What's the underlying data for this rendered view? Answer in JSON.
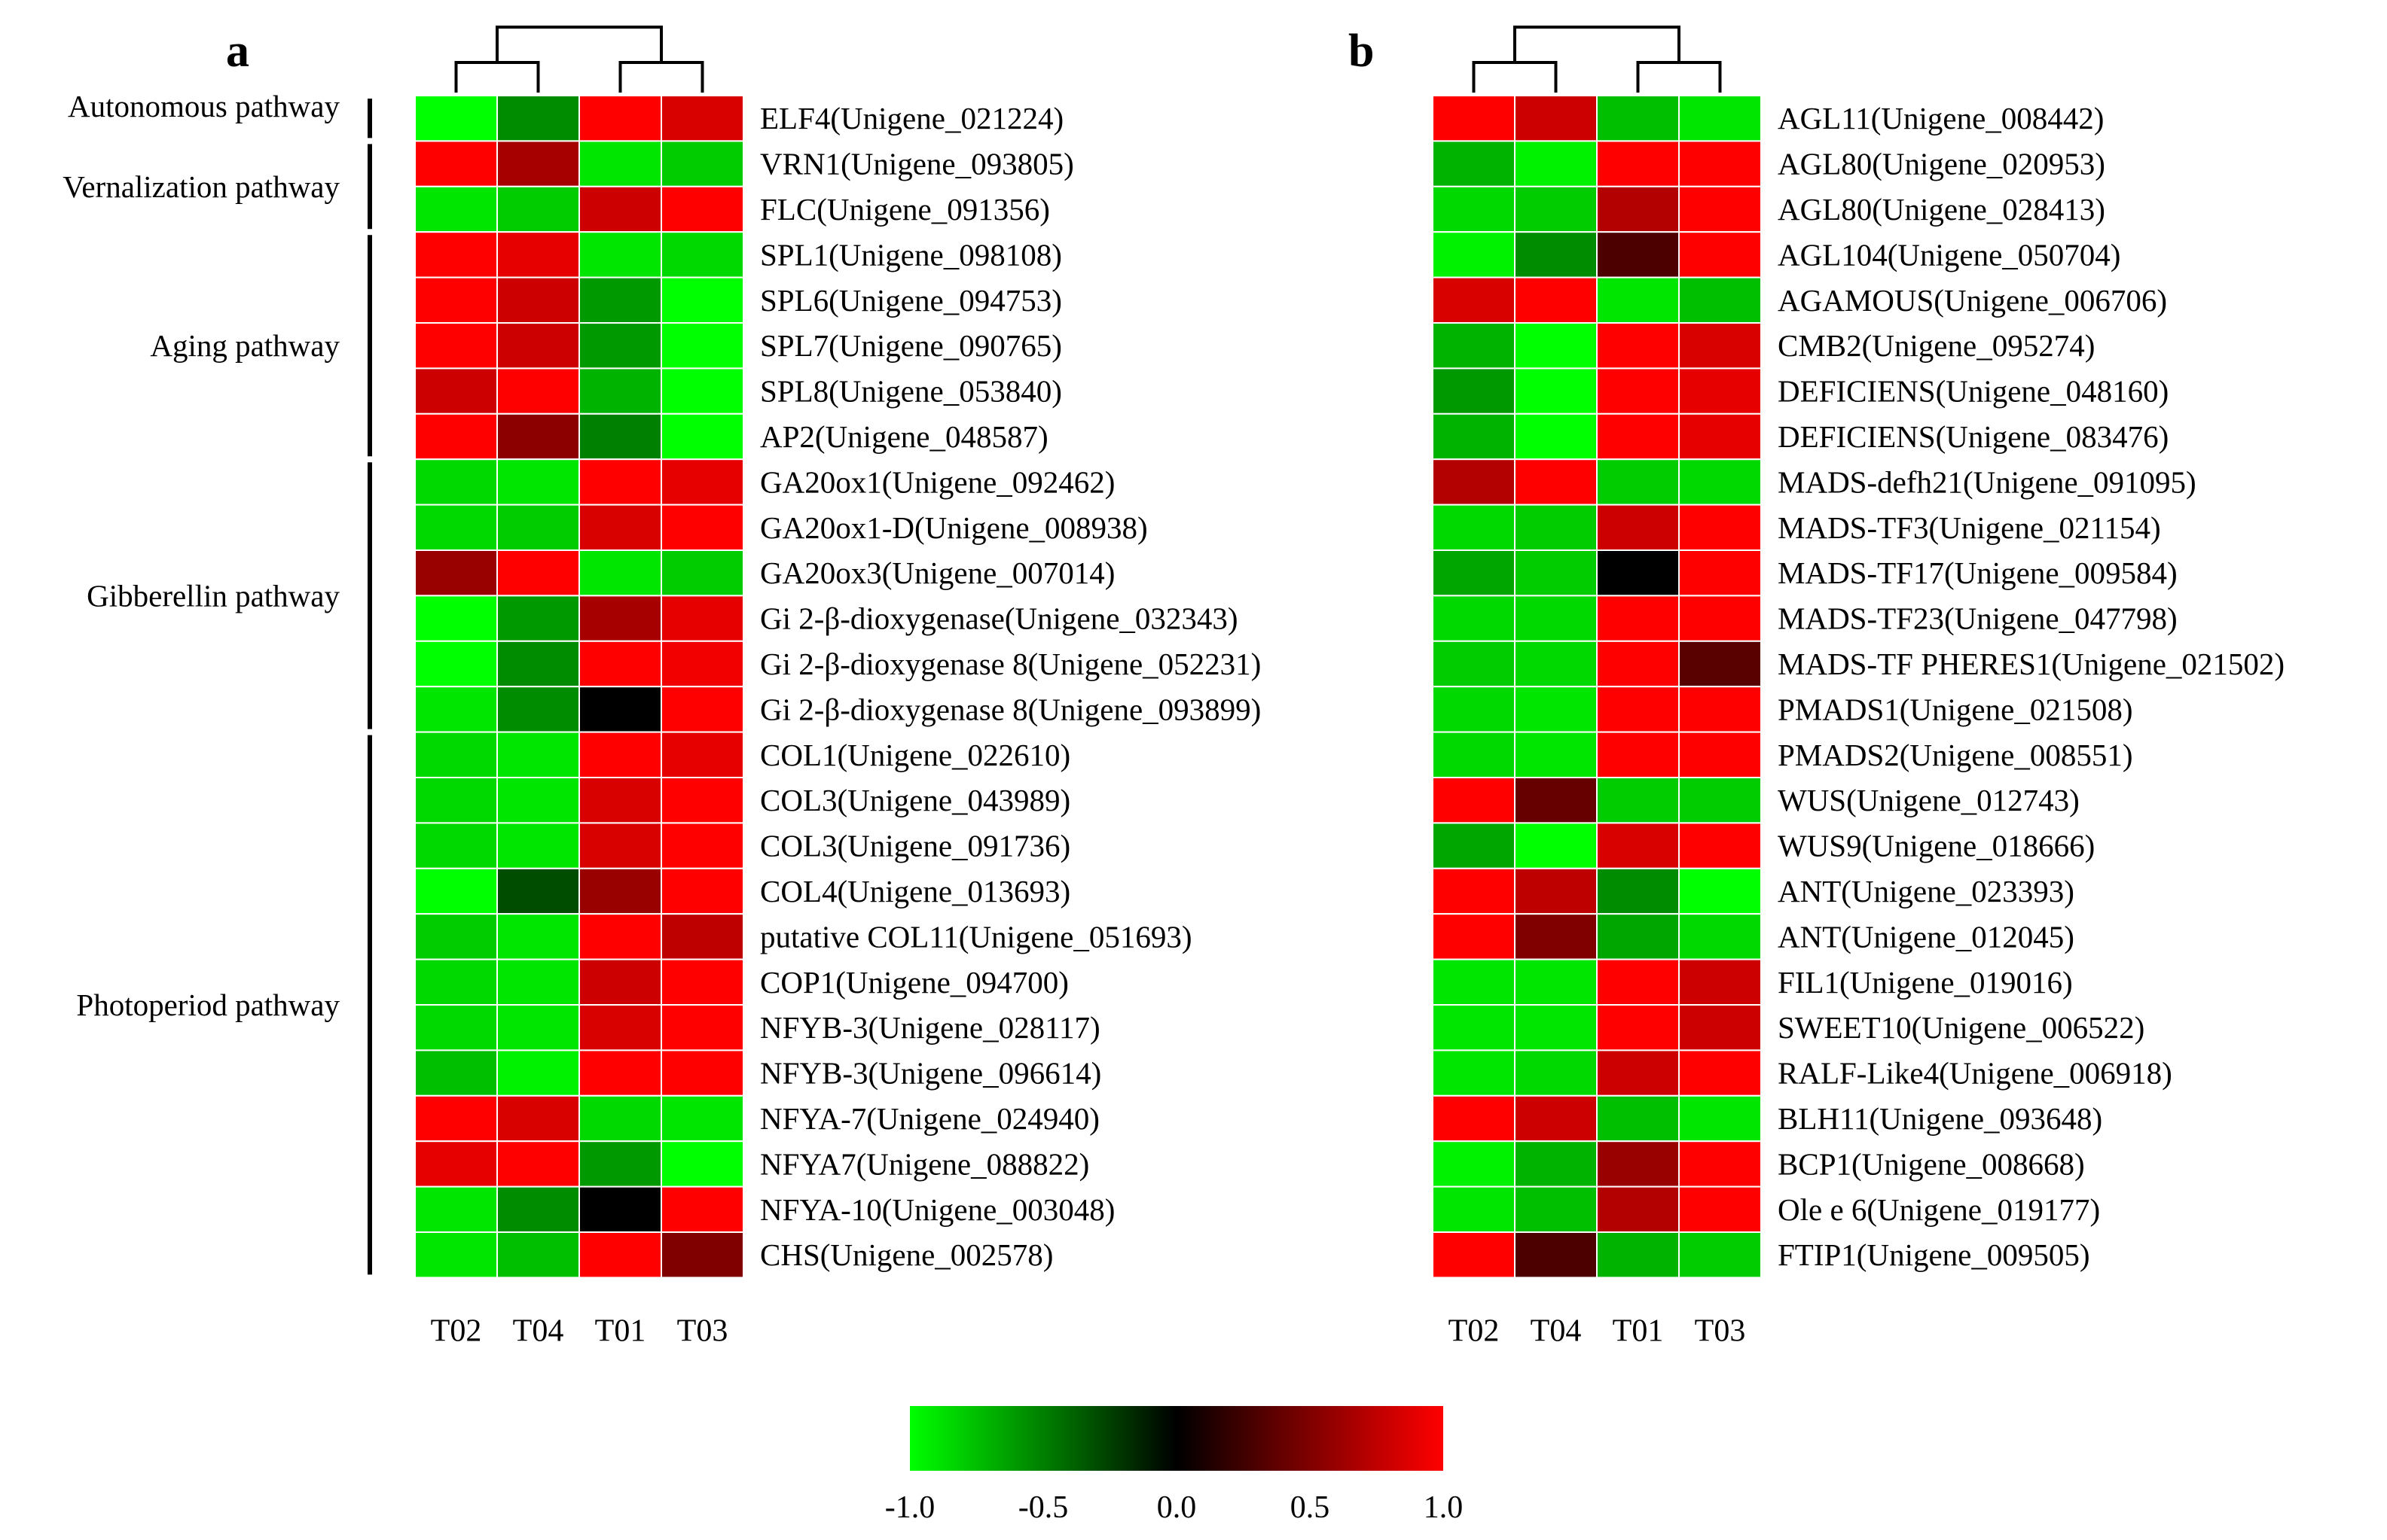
{
  "chart_data": [
    {
      "type": "heatmap",
      "panel": "a",
      "columns": [
        "T02",
        "T04",
        "T01",
        "T03"
      ],
      "rows": [
        {
          "label": "ELF4(Unigene_021224)",
          "values": [
            -1.0,
            -0.55,
            1.0,
            0.85
          ]
        },
        {
          "label": "VRN1(Unigene_093805)",
          "values": [
            1.0,
            0.65,
            -0.9,
            -0.8
          ]
        },
        {
          "label": "FLC(Unigene_091356)",
          "values": [
            -0.9,
            -0.8,
            0.8,
            1.0
          ]
        },
        {
          "label": "SPL1(Unigene_098108)",
          "values": [
            1.0,
            0.9,
            -0.9,
            -0.85
          ]
        },
        {
          "label": "SPL6(Unigene_094753)",
          "values": [
            1.0,
            0.8,
            -0.6,
            -1.0
          ]
        },
        {
          "label": "SPL7(Unigene_090765)",
          "values": [
            1.0,
            0.8,
            -0.6,
            -1.0
          ]
        },
        {
          "label": "SPL8(Unigene_053840)",
          "values": [
            0.8,
            1.0,
            -0.7,
            -1.0
          ]
        },
        {
          "label": "AP2(Unigene_048587)",
          "values": [
            1.0,
            0.55,
            -0.5,
            -1.0
          ]
        },
        {
          "label": "GA20ox1(Unigene_092462)",
          "values": [
            -0.85,
            -0.9,
            1.0,
            0.9
          ]
        },
        {
          "label": "GA20ox1-D(Unigene_008938)",
          "values": [
            -0.85,
            -0.8,
            0.85,
            1.0
          ]
        },
        {
          "label": "GA20ox3(Unigene_007014)",
          "values": [
            0.6,
            1.0,
            -0.9,
            -0.8
          ]
        },
        {
          "label": "Gi 2-β-dioxygenase(Unigene_032343)",
          "values": [
            -1.0,
            -0.6,
            0.65,
            0.9
          ]
        },
        {
          "label": "Gi 2-β-dioxygenase 8(Unigene_052231)",
          "values": [
            -1.0,
            -0.55,
            1.0,
            0.95
          ]
        },
        {
          "label": "Gi 2-β-dioxygenase 8(Unigene_093899)",
          "values": [
            -0.9,
            -0.55,
            0.0,
            1.0
          ]
        },
        {
          "label": "COL1(Unigene_022610)",
          "values": [
            -0.85,
            -0.9,
            1.0,
            0.9
          ]
        },
        {
          "label": "COL3(Unigene_043989)",
          "values": [
            -0.85,
            -0.9,
            0.85,
            1.0
          ]
        },
        {
          "label": "COL3(Unigene_091736)",
          "values": [
            -0.85,
            -0.9,
            0.85,
            1.0
          ]
        },
        {
          "label": "COL4(Unigene_013693)",
          "values": [
            -1.0,
            -0.3,
            0.6,
            1.0
          ]
        },
        {
          "label": "putative COL11(Unigene_051693)",
          "values": [
            -0.8,
            -0.9,
            1.0,
            0.75
          ]
        },
        {
          "label": "COP1(Unigene_094700)",
          "values": [
            -0.85,
            -0.9,
            0.8,
            1.0
          ]
        },
        {
          "label": "NFYB-3(Unigene_028117)",
          "values": [
            -0.85,
            -0.9,
            0.85,
            1.0
          ]
        },
        {
          "label": "NFYB-3(Unigene_096614)",
          "values": [
            -0.75,
            -0.95,
            1.0,
            1.0
          ]
        },
        {
          "label": "NFYA-7(Unigene_024940)",
          "values": [
            1.0,
            0.85,
            -0.85,
            -0.9
          ]
        },
        {
          "label": "NFYA7(Unigene_088822)",
          "values": [
            0.9,
            1.0,
            -0.6,
            -1.0
          ]
        },
        {
          "label": "NFYA-10(Unigene_003048)",
          "values": [
            -0.9,
            -0.55,
            0.0,
            1.0
          ]
        },
        {
          "label": "CHS(Unigene_002578)",
          "values": [
            -0.9,
            -0.75,
            1.0,
            0.5
          ]
        }
      ],
      "groups": [
        {
          "label": "Autonomous pathway",
          "first_row": 0,
          "last_row": 0
        },
        {
          "label": "Vernalization pathway",
          "first_row": 1,
          "last_row": 2
        },
        {
          "label": "Aging pathway",
          "first_row": 3,
          "last_row": 7
        },
        {
          "label": "Gibberellin pathway",
          "first_row": 8,
          "last_row": 13
        },
        {
          "label": "Photoperiod pathway",
          "first_row": 14,
          "last_row": 25
        }
      ]
    },
    {
      "type": "heatmap",
      "panel": "b",
      "columns": [
        "T02",
        "T04",
        "T01",
        "T03"
      ],
      "rows": [
        {
          "label": "AGL11(Unigene_008442)",
          "values": [
            1.0,
            0.8,
            -0.75,
            -0.9
          ]
        },
        {
          "label": "AGL80(Unigene_020953)",
          "values": [
            -0.7,
            -0.95,
            1.0,
            1.0
          ]
        },
        {
          "label": "AGL80(Unigene_028413)",
          "values": [
            -0.85,
            -0.8,
            0.7,
            1.0
          ]
        },
        {
          "label": "AGL104(Unigene_050704)",
          "values": [
            -0.95,
            -0.55,
            0.3,
            1.0
          ]
        },
        {
          "label": "AGAMOUS(Unigene_006706)",
          "values": [
            0.85,
            1.0,
            -0.9,
            -0.75
          ]
        },
        {
          "label": "CMB2(Unigene_095274)",
          "values": [
            -0.7,
            -1.0,
            1.0,
            0.85
          ]
        },
        {
          "label": "DEFICIENS(Unigene_048160)",
          "values": [
            -0.6,
            -1.0,
            1.0,
            0.9
          ]
        },
        {
          "label": "DEFICIENS(Unigene_083476)",
          "values": [
            -0.7,
            -1.0,
            1.0,
            0.9
          ]
        },
        {
          "label": "MADS-defh21(Unigene_091095)",
          "values": [
            0.7,
            1.0,
            -0.8,
            -0.85
          ]
        },
        {
          "label": "MADS-TF3(Unigene_021154)",
          "values": [
            -0.85,
            -0.8,
            0.8,
            1.0
          ]
        },
        {
          "label": "MADS-TF17(Unigene_009584)",
          "values": [
            -0.65,
            -0.8,
            0.0,
            1.0
          ]
        },
        {
          "label": "MADS-TF23(Unigene_047798)",
          "values": [
            -0.85,
            -0.85,
            1.0,
            1.0
          ]
        },
        {
          "label": "MADS-TF PHERES1(Unigene_021502)",
          "values": [
            -0.8,
            -0.85,
            1.0,
            0.35
          ]
        },
        {
          "label": "PMADS1(Unigene_021508)",
          "values": [
            -0.85,
            -0.9,
            1.0,
            1.0
          ]
        },
        {
          "label": "PMADS2(Unigene_008551)",
          "values": [
            -0.85,
            -0.9,
            1.0,
            1.0
          ]
        },
        {
          "label": "WUS(Unigene_012743)",
          "values": [
            1.0,
            0.4,
            -0.8,
            -0.8
          ]
        },
        {
          "label": "WUS9(Unigene_018666)",
          "values": [
            -0.65,
            -1.0,
            0.85,
            1.0
          ]
        },
        {
          "label": "ANT(Unigene_023393)",
          "values": [
            1.0,
            0.75,
            -0.55,
            -1.0
          ]
        },
        {
          "label": "ANT(Unigene_012045)",
          "values": [
            1.0,
            0.5,
            -0.65,
            -0.85
          ]
        },
        {
          "label": "FIL1(Unigene_019016)",
          "values": [
            -0.9,
            -0.9,
            1.0,
            0.8
          ]
        },
        {
          "label": "SWEET10(Unigene_006522)",
          "values": [
            -0.9,
            -0.9,
            1.0,
            0.8
          ]
        },
        {
          "label": "RALF-Like4(Unigene_006918)",
          "values": [
            -0.9,
            -0.85,
            0.8,
            1.0
          ]
        },
        {
          "label": "BLH11(Unigene_093648)",
          "values": [
            1.0,
            0.8,
            -0.75,
            -0.9
          ]
        },
        {
          "label": "BCP1(Unigene_008668)",
          "values": [
            -0.95,
            -0.7,
            0.6,
            1.0
          ]
        },
        {
          "label": "Ole e 6(Unigene_019177)",
          "values": [
            -0.9,
            -0.75,
            0.7,
            1.0
          ]
        },
        {
          "label": "FTIP1(Unigene_009505)",
          "values": [
            1.0,
            0.3,
            -0.7,
            -0.8
          ]
        }
      ]
    }
  ],
  "legend": {
    "min": -1.0,
    "max": 1.0,
    "ticks": [
      "-1.0",
      "-0.5",
      "0.0",
      "0.5",
      "1.0"
    ],
    "colors": {
      "low": "#00ff00",
      "mid": "#000000",
      "high": "#ff0000"
    }
  }
}
